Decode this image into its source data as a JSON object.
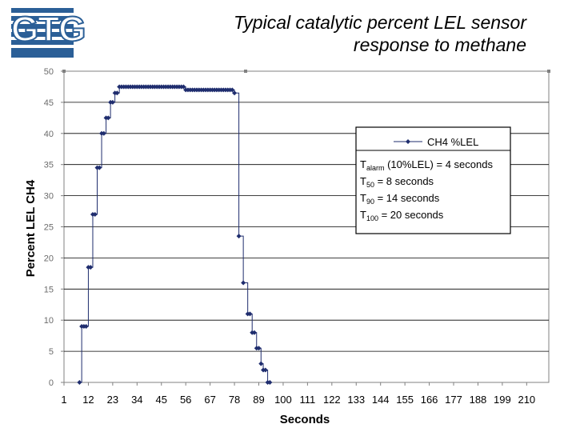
{
  "logo": {
    "text": "GTG",
    "color": "#2b5f97"
  },
  "slide": {
    "title_line1": "Typical catalytic percent LEL sensor",
    "title_line2": "response to methane"
  },
  "chart_data": {
    "type": "scatter",
    "title": "Typical catalytic percent LEL sensor response to methane",
    "xlabel": "Seconds",
    "ylabel": "Percent LEL CH4",
    "xlim": [
      1,
      220
    ],
    "ylim": [
      0,
      50
    ],
    "x_ticks": [
      "1",
      "12",
      "23",
      "34",
      "45",
      "56",
      "67",
      "78",
      "89",
      "100",
      "111",
      "122",
      "133",
      "144",
      "155",
      "166",
      "177",
      "188",
      "199",
      "210"
    ],
    "y_ticks": [
      "0",
      "5",
      "10",
      "15",
      "20",
      "25",
      "30",
      "35",
      "40",
      "45",
      "50"
    ],
    "grid": true,
    "legend": {
      "position": "right",
      "entries": [
        "CH4 %LEL"
      ]
    },
    "series": [
      {
        "name": "CH4 %LEL",
        "color": "#1f2d6e",
        "x": [
          8,
          9,
          10,
          11,
          12,
          13,
          14,
          15,
          16,
          17,
          18,
          19,
          20,
          21,
          22,
          23,
          24,
          25,
          26,
          27,
          28,
          29,
          30,
          31,
          32,
          33,
          34,
          35,
          36,
          37,
          38,
          39,
          40,
          41,
          42,
          43,
          44,
          45,
          46,
          47,
          48,
          49,
          50,
          51,
          52,
          53,
          54,
          55,
          56,
          57,
          58,
          59,
          60,
          61,
          62,
          63,
          64,
          65,
          66,
          67,
          68,
          69,
          70,
          71,
          72,
          73,
          74,
          75,
          76,
          77,
          78,
          80,
          82,
          84,
          85,
          86,
          87,
          88,
          89,
          90,
          91,
          92,
          93,
          94
        ],
        "values": [
          0,
          9,
          9,
          9,
          18.5,
          18.5,
          27,
          27,
          34.5,
          34.5,
          40,
          40,
          42.5,
          42.5,
          45,
          45,
          46.5,
          46.5,
          47.5,
          47.5,
          47.5,
          47.5,
          47.5,
          47.5,
          47.5,
          47.5,
          47.5,
          47.5,
          47.5,
          47.5,
          47.5,
          47.5,
          47.5,
          47.5,
          47.5,
          47.5,
          47.5,
          47.5,
          47.5,
          47.5,
          47.5,
          47.5,
          47.5,
          47.5,
          47.5,
          47.5,
          47.5,
          47.5,
          47,
          47,
          47,
          47,
          47,
          47,
          47,
          47,
          47,
          47,
          47,
          47,
          47,
          47,
          47,
          47,
          47,
          47,
          47,
          47,
          47,
          47,
          46.5,
          23.5,
          16,
          11,
          11,
          8,
          8,
          5.5,
          5.5,
          3,
          2,
          2,
          0,
          0
        ]
      }
    ],
    "annotations": [
      {
        "parts": [
          {
            "text": "T"
          },
          {
            "text": "alarm",
            "sub": true
          },
          {
            "text": " (10%LEL) = 4 seconds"
          }
        ]
      },
      {
        "parts": [
          {
            "text": "T"
          },
          {
            "text": "50",
            "sub": true
          },
          {
            "text": " = 8 seconds"
          }
        ]
      },
      {
        "parts": [
          {
            "text": "T"
          },
          {
            "text": "90",
            "sub": true
          },
          {
            "text": " = 14 seconds"
          }
        ]
      },
      {
        "parts": [
          {
            "text": "T"
          },
          {
            "text": "100",
            "sub": true
          },
          {
            "text": " = 20 seconds"
          }
        ]
      }
    ]
  }
}
